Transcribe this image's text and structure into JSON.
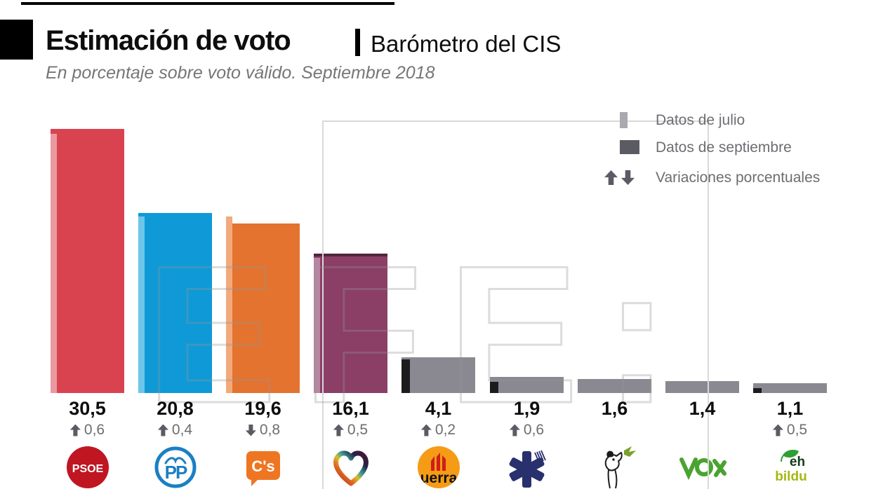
{
  "header": {
    "title": "Estimación de voto",
    "subtitle": "Barómetro del CIS",
    "description": "En porcentaje sobre voto válido. Septiembre 2018"
  },
  "legend": {
    "items": [
      {
        "label": "Datos de julio"
      },
      {
        "label": "Datos de septiembre"
      },
      {
        "label": "Variaciones porcentuales"
      }
    ]
  },
  "watermark": {
    "text": "EFE:"
  },
  "chart_data": {
    "type": "bar",
    "title": "Estimación de voto. Barómetro del CIS. Septiembre 2018",
    "ylabel": "% sobre voto válido",
    "ylim": [
      0,
      32
    ],
    "grid": false,
    "legend_position": "top-right",
    "categories": [
      "PSOE",
      "PP",
      "Ciudadanos",
      "Unidos Podemos",
      "ERC",
      "PDeCAT",
      "PACMA",
      "VOX",
      "EH Bildu"
    ],
    "series": [
      {
        "name": "Datos de septiembre",
        "values": [
          30.5,
          20.8,
          19.6,
          16.1,
          4.1,
          1.9,
          1.6,
          1.4,
          1.1
        ]
      },
      {
        "name": "Datos de julio",
        "values": [
          29.9,
          20.4,
          20.4,
          15.6,
          3.9,
          1.3,
          null,
          null,
          0.6
        ]
      }
    ],
    "variations": [
      0.6,
      0.4,
      -0.8,
      0.5,
      0.2,
      0.6,
      null,
      null,
      0.5
    ]
  },
  "parties": [
    {
      "name": "PSOE",
      "logo": "psoe-logo",
      "value": 30.5,
      "july": 29.9,
      "value_label": "30,5",
      "variation_label": "0,6",
      "direction": "up",
      "bar_color": "#d9434f",
      "july_color": "#ea99a1"
    },
    {
      "name": "PP",
      "logo": "pp-logo",
      "value": 20.8,
      "july": 20.4,
      "value_label": "20,8",
      "variation_label": "0,4",
      "direction": "up",
      "bar_color": "#0f9ad7",
      "july_color": "#6cc6e9"
    },
    {
      "name": "Ciudadanos",
      "logo": "cs-logo",
      "value": 19.6,
      "july": 20.4,
      "value_label": "19,6",
      "variation_label": "0,8",
      "direction": "down",
      "bar_color": "#e4732f",
      "july_color": "#f2a97c"
    },
    {
      "name": "Unidos Podemos",
      "logo": "up-logo",
      "value": 16.1,
      "july": 15.6,
      "value_label": "16,1",
      "variation_label": "0,5",
      "direction": "up",
      "bar_color": "#8b3e66",
      "july_color": "#b787a2",
      "top_edge": "#50243f"
    },
    {
      "name": "ERC",
      "logo": "erc-logo",
      "value": 4.1,
      "july": 3.9,
      "value_label": "4,1",
      "variation_label": "0,2",
      "direction": "up",
      "bar_color": "#8a8991",
      "july_color": "#1c1c1f"
    },
    {
      "name": "PDeCAT",
      "logo": "pdecat-logo",
      "value": 1.9,
      "july": 1.3,
      "value_label": "1,9",
      "variation_label": "0,6",
      "direction": "up",
      "bar_color": "#8a8991",
      "july_color": "#1c1c1f"
    },
    {
      "name": "PACMA",
      "logo": "pacma-logo",
      "value": 1.6,
      "july": null,
      "value_label": "1,6",
      "variation_label": null,
      "direction": null,
      "bar_color": "#8a8991",
      "july_color": null
    },
    {
      "name": "VOX",
      "logo": "vox-logo",
      "value": 1.4,
      "july": null,
      "value_label": "1,4",
      "variation_label": null,
      "direction": null,
      "bar_color": "#8a8991",
      "july_color": null
    },
    {
      "name": "EH Bildu",
      "logo": "ehbildu-logo",
      "value": 1.1,
      "july": 0.6,
      "value_label": "1,1",
      "variation_label": "0,5",
      "direction": "up",
      "bar_color": "#8a8991",
      "july_color": "#1c1c1f"
    }
  ]
}
